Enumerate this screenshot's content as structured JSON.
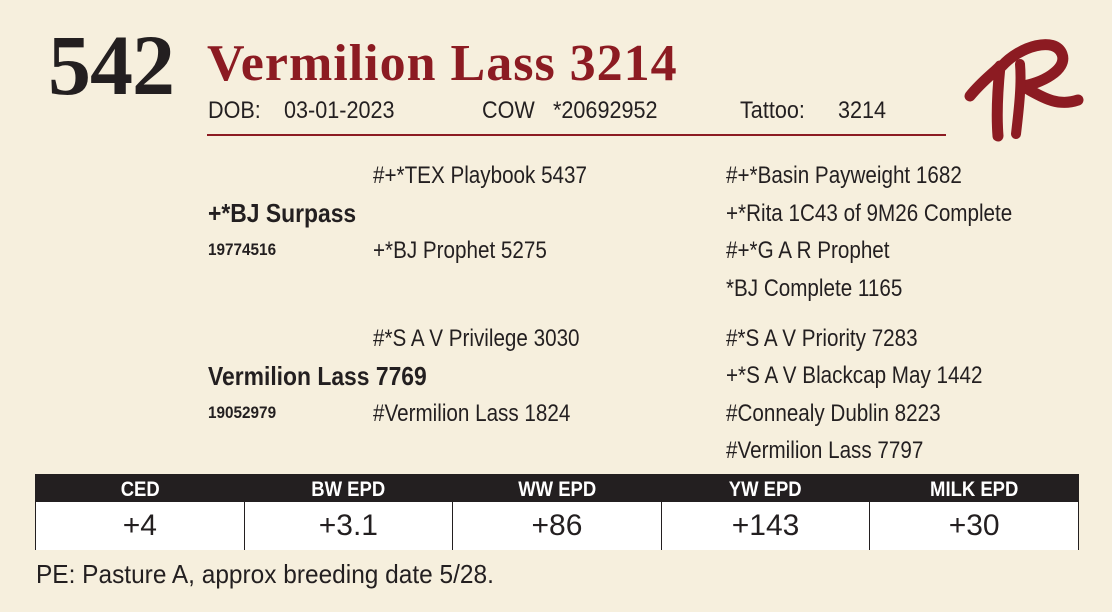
{
  "header": {
    "lot_number": "542",
    "animal_name": "Vermilion Lass 3214",
    "dob_label": "DOB:",
    "dob_value": "03-01-2023",
    "sex_label": "COW",
    "registration": "*20692952",
    "tattoo_label": "Tattoo:",
    "tattoo_value": "3214"
  },
  "colors": {
    "accent": "#8c1b22",
    "background": "#f6efdd",
    "dark": "#231f20"
  },
  "logo": {
    "icon": "vr-brand-icon"
  },
  "pedigree": {
    "sire": {
      "name": "+*BJ Surpass",
      "reg": "19774516"
    },
    "sire_sire": "#+*TEX Playbook 5437",
    "sire_dam": "+*BJ Prophet 5275",
    "sire_sire_sire": "#+*Basin Payweight 1682",
    "sire_sire_dam": "+*Rita 1C43 of 9M26 Complete",
    "sire_dam_sire": "#+*G A R Prophet",
    "sire_dam_dam": "*BJ Complete 1165",
    "dam": {
      "name": "Vermilion Lass 7769",
      "reg": "19052979"
    },
    "dam_sire": "#*S A V Privilege 3030",
    "dam_dam": "#Vermilion Lass 1824",
    "dam_sire_sire": "#*S A V Priority 7283",
    "dam_sire_dam": "+*S A V Blackcap May 1442",
    "dam_dam_sire": "#Connealy Dublin 8223",
    "dam_dam_dam": "#Vermilion Lass 7797"
  },
  "epd": {
    "headers": [
      "CED",
      "BW EPD",
      "WW EPD",
      "YW EPD",
      "MILK EPD"
    ],
    "values": [
      "+4",
      "+3.1",
      "+86",
      "+143",
      "+30"
    ]
  },
  "note": "PE: Pasture A, approx breeding date 5/28."
}
